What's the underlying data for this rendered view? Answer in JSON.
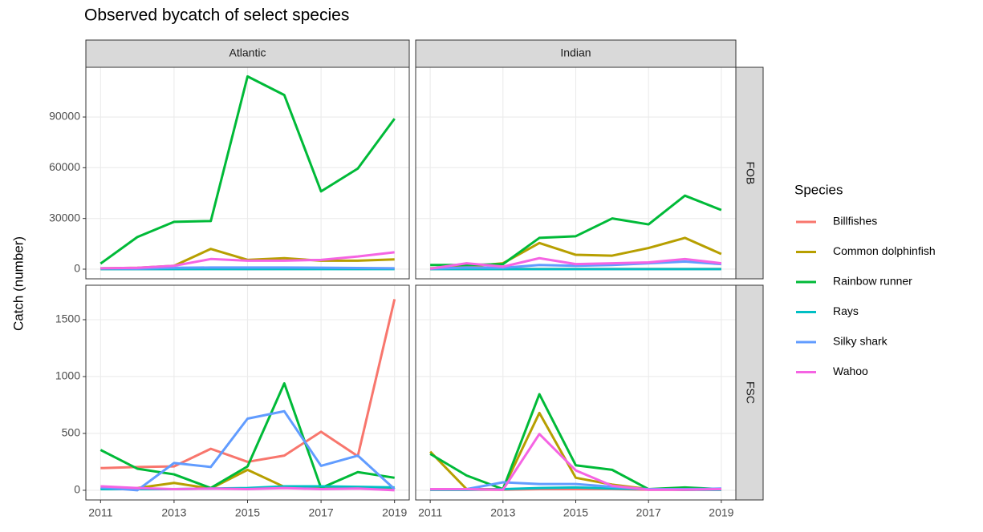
{
  "chart_data": {
    "type": "line",
    "title": "Observed bycatch of select species",
    "y_label": "Catch (number)",
    "legend_title": "Species",
    "x": [
      2011,
      2012,
      2013,
      2014,
      2015,
      2016,
      2017,
      2018,
      2019
    ],
    "xlim": [
      2010.6,
      2019.4
    ],
    "xticks": [
      2011,
      2013,
      2015,
      2017,
      2019
    ],
    "grid": true,
    "columns": [
      "Atlantic",
      "Indian"
    ],
    "species": [
      {
        "name": "Billfishes",
        "color": "#F8766D"
      },
      {
        "name": "Common dolphinfish",
        "color": "#B79F00"
      },
      {
        "name": "Rainbow runner",
        "color": "#00BA38"
      },
      {
        "name": "Rays",
        "color": "#00BFC4"
      },
      {
        "name": "Silky shark",
        "color": "#619CFF"
      },
      {
        "name": "Wahoo",
        "color": "#F564E3"
      }
    ],
    "rows": [
      {
        "label": "FOB",
        "ylim": [
          -5700,
          119400
        ],
        "yticks": [
          0,
          30000,
          60000,
          90000
        ],
        "panels": [
          {
            "series": [
              {
                "values": [
                  100,
                  100,
                  100,
                  150,
                  120,
                  150,
                  200,
                  150,
                  300
                ]
              },
              {
                "values": [
                  500,
                  800,
                  2000,
                  12000,
                  5500,
                  6500,
                  5000,
                  5000,
                  5800
                ]
              },
              {
                "values": [
                  3300,
                  19000,
                  28000,
                  28500,
                  114000,
                  103000,
                  46000,
                  59500,
                  89000
                ]
              },
              {
                "values": [
                  50,
                  50,
                  50,
                  60,
                  60,
                  60,
                  60,
                  50,
                  50
                ]
              },
              {
                "values": [
                  500,
                  300,
                  800,
                  1000,
                  1000,
                  1000,
                  900,
                  700,
                  500
                ]
              },
              {
                "values": [
                  500,
                  800,
                  2000,
                  6000,
                  5000,
                  5000,
                  5500,
                  7500,
                  10000
                ]
              }
            ]
          },
          {
            "series": [
              {
                "values": [
                  100,
                  100,
                  100,
                  120,
                  120,
                  120,
                  100,
                  100,
                  100
                ]
              },
              {
                "values": [
                  500,
                  1500,
                  3500,
                  15500,
                  8500,
                  8000,
                  12500,
                  18500,
                  9000
                ]
              },
              {
                "values": [
                  2500,
                  2500,
                  3000,
                  18500,
                  19500,
                  30000,
                  26500,
                  43500,
                  35000
                ]
              },
              {
                "values": [
                  50,
                  50,
                  50,
                  60,
                  60,
                  60,
                  60,
                  50,
                  50
                ]
              },
              {
                "values": [
                  300,
                  1000,
                  800,
                  2500,
                  2000,
                  2500,
                  3500,
                  4500,
                  3000
                ]
              },
              {
                "values": [
                  300,
                  3500,
                  1500,
                  6500,
                  3000,
                  3500,
                  4000,
                  6000,
                  3500
                ]
              }
            ]
          }
        ]
      },
      {
        "label": "FSC",
        "ylim": [
          -85,
          1803
        ],
        "yticks": [
          0,
          500,
          1000,
          1500
        ],
        "panels": [
          {
            "series": [
              {
                "values": [
                  195,
                  205,
                  210,
                  365,
                  250,
                  305,
                  515,
                  300,
                  1680
                ]
              },
              {
                "values": [
                  10,
                  20,
                  65,
                  15,
                  180,
                  30,
                  20,
                  20,
                  20
                ]
              },
              {
                "values": [
                  355,
                  190,
                  140,
                  20,
                  210,
                  940,
                  20,
                  160,
                  110
                ]
              },
              {
                "values": [
                  10,
                  10,
                  10,
                  15,
                  20,
                  35,
                  35,
                  30,
                  25
                ]
              },
              {
                "values": [
                  25,
                  0,
                  240,
                  205,
                  630,
                  695,
                  215,
                  305,
                  10
                ]
              },
              {
                "values": [
                  35,
                  20,
                  10,
                  15,
                  10,
                  20,
                  10,
                  15,
                  0
                ]
              }
            ]
          },
          {
            "series": [
              {
                "values": [
                  5,
                  5,
                  5,
                  10,
                  10,
                  10,
                  5,
                  5,
                  5
                ]
              },
              {
                "values": [
                  340,
                  10,
                  10,
                  680,
                  110,
                  50,
                  10,
                  5,
                  10
                ]
              },
              {
                "values": [
                  320,
                  130,
                  10,
                  845,
                  220,
                  180,
                  10,
                  25,
                  10
                ]
              },
              {
                "values": [
                  5,
                  5,
                  10,
                  20,
                  25,
                  15,
                  10,
                  5,
                  5
                ]
              },
              {
                "values": [
                  10,
                  10,
                  70,
                  55,
                  55,
                  30,
                  10,
                  10,
                  15
                ]
              },
              {
                "values": [
                  10,
                  10,
                  5,
                  495,
                  175,
                  40,
                  5,
                  5,
                  10
                ]
              }
            ]
          }
        ]
      }
    ]
  }
}
